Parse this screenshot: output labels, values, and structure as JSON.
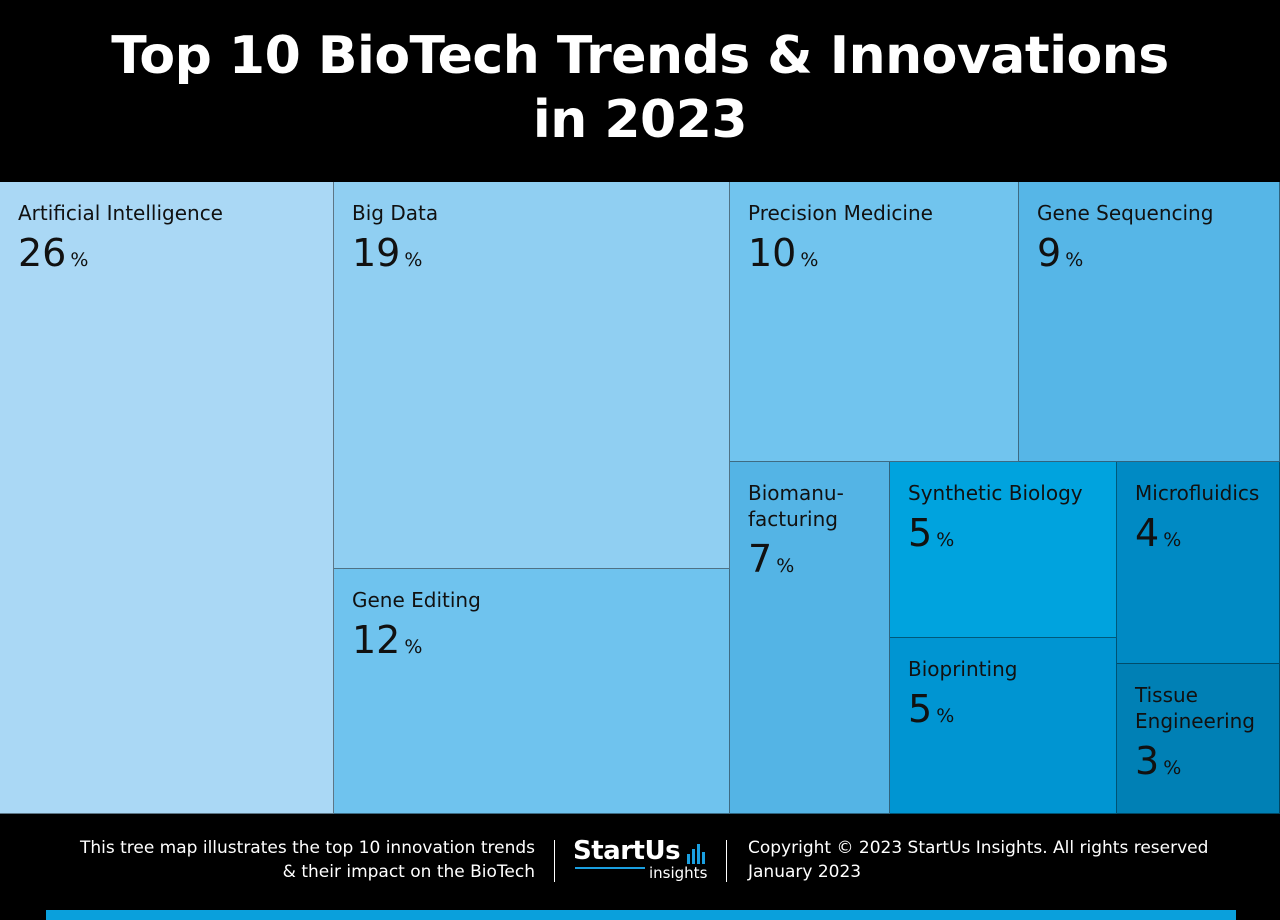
{
  "title_lines": [
    "Top 10 BioTech Trends & Innovations",
    "in 2023"
  ],
  "chart_data": {
    "type": "treemap",
    "title": "Top 10 BioTech Trends & Innovations in 2023",
    "unit": "%",
    "items": [
      {
        "label": "Artificial Intelligence",
        "value": 26,
        "color": "#aad8f5"
      },
      {
        "label": "Big Data",
        "value": 19,
        "color": "#90cff2"
      },
      {
        "label": "Gene Editing",
        "value": 12,
        "color": "#6fc3ee"
      },
      {
        "label": "Precision Medicine",
        "value": 10,
        "color": "#71c4ee"
      },
      {
        "label": "Gene Sequencing",
        "value": 9,
        "color": "#56b6e7"
      },
      {
        "label": "Biomanu-\nfacturing",
        "value": 7,
        "color": "#54b4e5"
      },
      {
        "label": "Synthetic Biology",
        "value": 5,
        "color": "#00a3de"
      },
      {
        "label": "Bioprinting",
        "value": 5,
        "color": "#0095d2"
      },
      {
        "label": "Microfluidics",
        "value": 4,
        "color": "#008ac4"
      },
      {
        "label": "Tissue\nEngineering",
        "value": 3,
        "color": "#0080b5"
      }
    ]
  },
  "footer": {
    "description_lines": [
      "This tree map illustrates the top 10 innovation trends",
      "& their impact on the BioTech"
    ],
    "logo_text": "StartUs",
    "logo_subtext": "insights",
    "copyright_lines": [
      "Copyright © 2023 StartUs Insights. All rights reserved",
      "January 2023"
    ],
    "accent_color": "#0aa0dc"
  }
}
